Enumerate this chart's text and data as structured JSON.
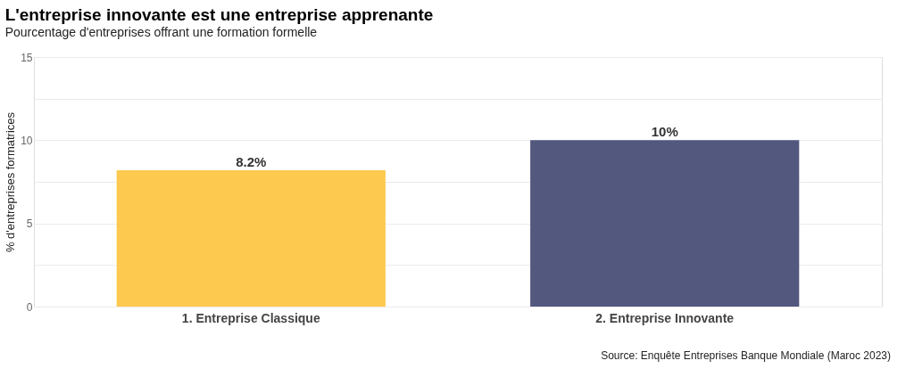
{
  "chart_data": {
    "type": "bar",
    "title": "L'entreprise innovante est une entreprise apprenante",
    "subtitle": "Pourcentage d'entreprises offrant une formation formelle",
    "ylabel": "% d'entreprises formatrices",
    "categories": [
      "1. Entreprise Classique",
      "2. Entreprise Innovante"
    ],
    "values": [
      8.2,
      10
    ],
    "colors": [
      "#fdc94f",
      "#52587e"
    ],
    "value_labels": [
      "8.2%",
      "10%"
    ],
    "ylim": [
      0,
      15
    ],
    "yticks": [
      0,
      {
        "value": 2.5,
        "label": null
      },
      5,
      {
        "value": 7.5,
        "label": null
      },
      10,
      {
        "value": 12.5,
        "label": null
      },
      15
    ],
    "grid": "y",
    "legend": false,
    "annotations": [
      "Source: Enquête Entreprises Banque Mondiale (Maroc 2023)"
    ]
  }
}
